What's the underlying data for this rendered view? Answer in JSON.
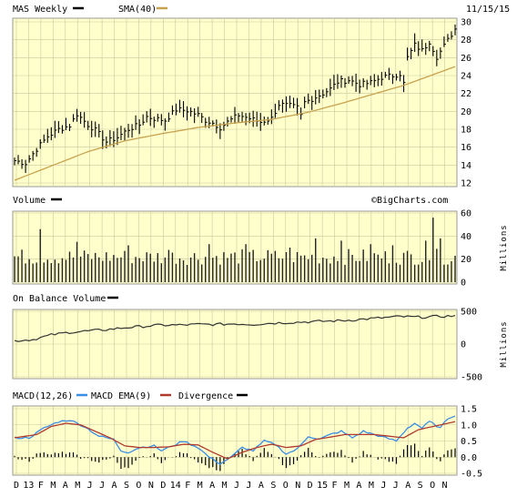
{
  "chart_data": {
    "type": "line",
    "header": {
      "symbol_label": "MAS Weekly",
      "sma_label": "SMA(40)",
      "date": "11/15/15"
    },
    "watermark": "©BigCharts.com",
    "colors": {
      "price": "#000000",
      "sma": "#c8a24e",
      "panel_bg": "#ffffcc",
      "grid": "#c8c8a0",
      "macd": "#3a8ee6",
      "ema": "#b03a2e",
      "bars": "#000000"
    },
    "x_axis_labels": [
      "D",
      "13",
      "F",
      "M",
      "A",
      "M",
      "J",
      "J",
      "A",
      "S",
      "O",
      "N",
      "D",
      "14",
      "F",
      "M",
      "A",
      "M",
      "J",
      "J",
      "A",
      "S",
      "O",
      "N",
      "D",
      "15",
      "F",
      "M",
      "A",
      "M",
      "J",
      "J",
      "A",
      "S",
      "O",
      "N"
    ],
    "price_panel": {
      "ylim": [
        12,
        30
      ],
      "yticks": [
        12,
        14,
        16,
        18,
        20,
        22,
        24,
        26,
        28,
        30
      ],
      "price_anchors": [
        [
          0,
          14.5
        ],
        [
          3,
          14.2
        ],
        [
          6,
          15.8
        ],
        [
          9,
          17.2
        ],
        [
          12,
          18.0
        ],
        [
          15,
          18.4
        ],
        [
          17,
          19.7
        ],
        [
          20,
          18.5
        ],
        [
          22,
          17.9
        ],
        [
          25,
          16.6
        ],
        [
          28,
          17.1
        ],
        [
          31,
          18.0
        ],
        [
          34,
          18.5
        ],
        [
          36,
          19.4
        ],
        [
          38,
          19.2
        ],
        [
          41,
          19.0
        ],
        [
          44,
          20.2
        ],
        [
          47,
          20.1
        ],
        [
          50,
          19.6
        ],
        [
          52,
          19.0
        ],
        [
          54,
          18.7
        ],
        [
          56,
          18.2
        ],
        [
          58,
          18.8
        ],
        [
          61,
          19.6
        ],
        [
          64,
          19.2
        ],
        [
          67,
          18.8
        ],
        [
          70,
          19.2
        ],
        [
          72,
          20.8
        ],
        [
          75,
          20.6
        ],
        [
          77,
          20.4
        ],
        [
          78,
          19.5
        ],
        [
          79,
          21.0
        ],
        [
          81,
          21.4
        ],
        [
          84,
          22.0
        ],
        [
          86,
          22.5
        ],
        [
          88,
          23.3
        ],
        [
          91,
          23.5
        ],
        [
          94,
          23.0
        ],
        [
          97,
          23.2
        ],
        [
          100,
          23.8
        ],
        [
          103,
          24.0
        ],
        [
          105,
          24.2
        ],
        [
          106,
          23.1
        ],
        [
          107,
          26.0
        ],
        [
          109,
          27.4
        ],
        [
          111,
          26.8
        ],
        [
          113,
          27.8
        ],
        [
          115,
          26.1
        ],
        [
          117,
          27.3
        ],
        [
          119,
          28.6
        ],
        [
          120,
          29.2
        ]
      ],
      "sma_anchors": [
        [
          0,
          12.3
        ],
        [
          10,
          13.9
        ],
        [
          20,
          15.5
        ],
        [
          30,
          16.7
        ],
        [
          40,
          17.5
        ],
        [
          50,
          18.2
        ],
        [
          60,
          18.7
        ],
        [
          70,
          19.1
        ],
        [
          80,
          19.9
        ],
        [
          90,
          21.0
        ],
        [
          100,
          22.2
        ],
        [
          106,
          22.9
        ],
        [
          112,
          23.8
        ],
        [
          120,
          25.0
        ]
      ]
    },
    "volume_panel": {
      "title": "Volume",
      "units": "Millions",
      "ylim": [
        0,
        60
      ],
      "yticks": [
        0,
        20,
        40,
        60
      ],
      "base_level": 22,
      "spikes": [
        [
          7,
          46
        ],
        [
          17,
          35
        ],
        [
          31,
          32
        ],
        [
          42,
          28
        ],
        [
          53,
          33
        ],
        [
          63,
          33
        ],
        [
          75,
          30
        ],
        [
          82,
          38
        ],
        [
          89,
          36
        ],
        [
          97,
          33
        ],
        [
          103,
          32
        ],
        [
          112,
          36
        ],
        [
          114,
          56
        ],
        [
          116,
          38
        ]
      ]
    },
    "obv_panel": {
      "title": "On Balance Volume",
      "units": "Millions",
      "ylim": [
        -500,
        500
      ],
      "yticks": [
        -500,
        0,
        500
      ],
      "anchors": [
        [
          0,
          50
        ],
        [
          5,
          70
        ],
        [
          10,
          140
        ],
        [
          15,
          180
        ],
        [
          20,
          200
        ],
        [
          25,
          220
        ],
        [
          30,
          250
        ],
        [
          35,
          270
        ],
        [
          40,
          290
        ],
        [
          45,
          290
        ],
        [
          50,
          300
        ],
        [
          55,
          300
        ],
        [
          60,
          310
        ],
        [
          65,
          300
        ],
        [
          70,
          320
        ],
        [
          75,
          330
        ],
        [
          80,
          340
        ],
        [
          85,
          350
        ],
        [
          90,
          360
        ],
        [
          95,
          380
        ],
        [
          100,
          400
        ],
        [
          105,
          420
        ],
        [
          110,
          410
        ],
        [
          115,
          420
        ],
        [
          120,
          430
        ]
      ]
    },
    "macd_panel": {
      "title": "MACD(12,26)",
      "macd_label": "MACD EMA(9)",
      "divergence_label": "Divergence",
      "ylim": [
        -0.5,
        1.5
      ],
      "yticks": [
        -0.5,
        0.0,
        0.5,
        1.0,
        1.5
      ],
      "macd_anchors": [
        [
          0,
          0.6
        ],
        [
          4,
          0.6
        ],
        [
          8,
          0.9
        ],
        [
          12,
          1.1
        ],
        [
          15,
          1.15
        ],
        [
          19,
          0.95
        ],
        [
          23,
          0.65
        ],
        [
          27,
          0.55
        ],
        [
          29,
          0.2
        ],
        [
          31,
          0.15
        ],
        [
          34,
          0.3
        ],
        [
          38,
          0.35
        ],
        [
          40,
          0.2
        ],
        [
          44,
          0.4
        ],
        [
          46,
          0.5
        ],
        [
          50,
          0.3
        ],
        [
          53,
          0.0
        ],
        [
          56,
          -0.2
        ],
        [
          59,
          0.0
        ],
        [
          62,
          0.3
        ],
        [
          65,
          0.2
        ],
        [
          68,
          0.5
        ],
        [
          71,
          0.4
        ],
        [
          74,
          0.1
        ],
        [
          77,
          0.25
        ],
        [
          80,
          0.65
        ],
        [
          83,
          0.55
        ],
        [
          86,
          0.7
        ],
        [
          89,
          0.8
        ],
        [
          92,
          0.6
        ],
        [
          95,
          0.8
        ],
        [
          98,
          0.7
        ],
        [
          101,
          0.6
        ],
        [
          104,
          0.5
        ],
        [
          107,
          0.9
        ],
        [
          109,
          1.05
        ],
        [
          111,
          0.9
        ],
        [
          113,
          1.1
        ],
        [
          116,
          0.9
        ],
        [
          118,
          1.2
        ],
        [
          120,
          1.3
        ]
      ],
      "ema_anchors": [
        [
          0,
          0.6
        ],
        [
          6,
          0.7
        ],
        [
          10,
          0.95
        ],
        [
          14,
          1.05
        ],
        [
          18,
          1.0
        ],
        [
          22,
          0.8
        ],
        [
          26,
          0.6
        ],
        [
          30,
          0.35
        ],
        [
          34,
          0.3
        ],
        [
          38,
          0.3
        ],
        [
          42,
          0.32
        ],
        [
          46,
          0.4
        ],
        [
          50,
          0.38
        ],
        [
          54,
          0.15
        ],
        [
          58,
          -0.05
        ],
        [
          62,
          0.15
        ],
        [
          66,
          0.3
        ],
        [
          70,
          0.4
        ],
        [
          74,
          0.3
        ],
        [
          78,
          0.35
        ],
        [
          82,
          0.55
        ],
        [
          86,
          0.62
        ],
        [
          90,
          0.7
        ],
        [
          94,
          0.7
        ],
        [
          98,
          0.7
        ],
        [
          102,
          0.65
        ],
        [
          106,
          0.6
        ],
        [
          110,
          0.85
        ],
        [
          114,
          0.95
        ],
        [
          118,
          1.05
        ],
        [
          120,
          1.1
        ]
      ]
    }
  }
}
